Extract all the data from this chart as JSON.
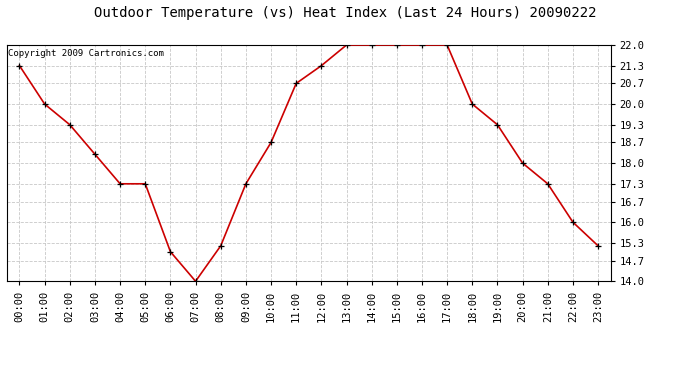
{
  "title": "Outdoor Temperature (vs) Heat Index (Last 24 Hours) 20090222",
  "copyright": "Copyright 2009 Cartronics.com",
  "hours": [
    "00:00",
    "01:00",
    "02:00",
    "03:00",
    "04:00",
    "05:00",
    "06:00",
    "07:00",
    "08:00",
    "09:00",
    "10:00",
    "11:00",
    "12:00",
    "13:00",
    "14:00",
    "15:00",
    "16:00",
    "17:00",
    "18:00",
    "19:00",
    "20:00",
    "21:00",
    "22:00",
    "23:00"
  ],
  "values": [
    21.3,
    20.0,
    19.3,
    18.3,
    17.3,
    17.3,
    15.0,
    14.0,
    15.2,
    17.3,
    18.7,
    20.7,
    21.3,
    22.0,
    22.0,
    22.0,
    22.0,
    22.0,
    20.0,
    19.3,
    18.0,
    17.3,
    16.0,
    15.2
  ],
  "ylim_min": 14.0,
  "ylim_max": 22.0,
  "yticks": [
    14.0,
    14.7,
    15.3,
    16.0,
    16.7,
    17.3,
    18.0,
    18.7,
    19.3,
    20.0,
    20.7,
    21.3,
    22.0
  ],
  "line_color": "#cc0000",
  "marker_edge_color": "#000000",
  "bg_color": "#ffffff",
  "grid_color": "#c8c8c8",
  "title_fontsize": 10,
  "copyright_fontsize": 6.5,
  "tick_fontsize": 7.5
}
